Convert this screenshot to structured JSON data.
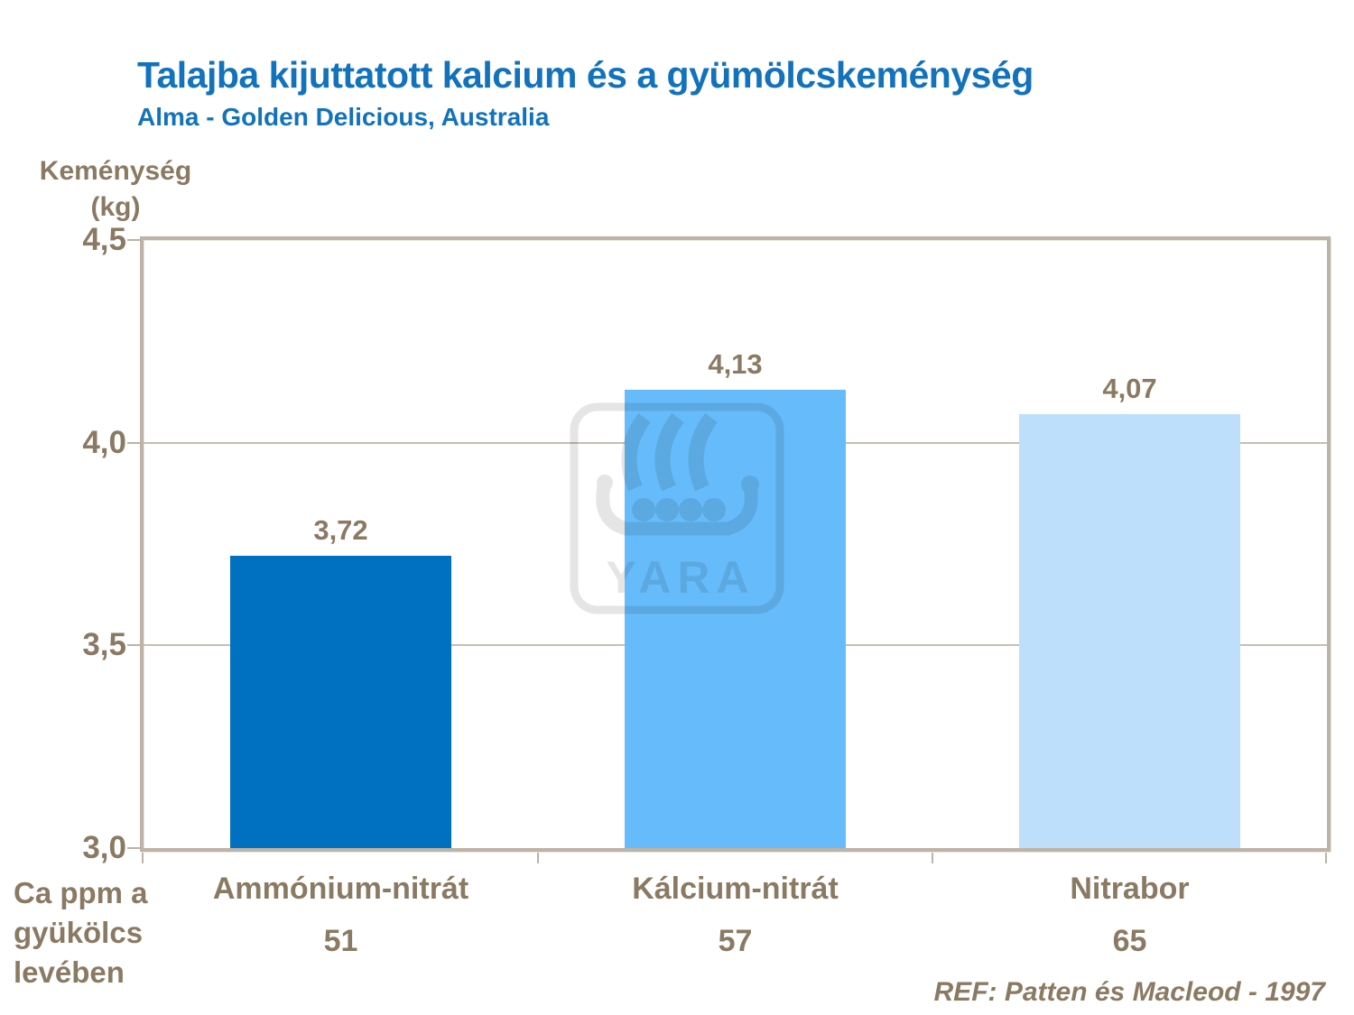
{
  "title": "Talajba kijuttatott kalcium és a gyümölcskeménység",
  "subtitle": "Alma - Golden Delicious, Australia",
  "y_axis": {
    "label_line1": "Keménység",
    "label_line2": "(kg)",
    "tick_labels": [
      "4,5",
      "4,0",
      "3,5",
      "3,0"
    ]
  },
  "x_axis": {
    "caption_lines": [
      "Ca ppm a",
      "gyükölcs",
      "levében"
    ]
  },
  "bars": [
    {
      "name": "Ammónium-nitrát",
      "ca_ppm": "51",
      "value_label": "3,72",
      "color": "#0070C0"
    },
    {
      "name": "Kálcium-nitrát",
      "ca_ppm": "57",
      "value_label": "4,13",
      "color": "#66BCFB"
    },
    {
      "name": "Nitrabor",
      "ca_ppm": "65",
      "value_label": "4,07",
      "color": "#BDDFFB"
    }
  ],
  "reference": "REF: Patten és Macleod - 1997",
  "watermark": {
    "name": "yara-viking-ship-logo",
    "text": "YARA"
  },
  "colors": {
    "title_blue": "#1272BC",
    "text_brown": "#8B7A63",
    "axis_frame": "#BDB3A6",
    "gridline": "#C8BEB1",
    "watermark_gray": "#E5E5E5",
    "background": "#FFFFFF"
  },
  "chart_data": {
    "type": "bar",
    "title": "Talajba kijuttatott kalcium és a gyümölcskeménység",
    "subtitle": "Alma - Golden Delicious, Australia",
    "categories": [
      "Ammónium-nitrát",
      "Kálcium-nitrát",
      "Nitrabor"
    ],
    "category_sub_labels": [
      "51",
      "57",
      "65"
    ],
    "values": [
      3.72,
      4.13,
      4.07
    ],
    "bar_colors": [
      "#0070C0",
      "#66BCFB",
      "#BDDFFB"
    ],
    "xlabel": "Ca ppm a gyükölcs levében",
    "ylabel": "Keménység (kg)",
    "ylim": [
      3.0,
      4.5
    ],
    "yticks": [
      4.5,
      4.0,
      3.5,
      3.0
    ],
    "grid": true,
    "legend": false,
    "annotation": "REF: Patten és Macleod - 1997"
  }
}
